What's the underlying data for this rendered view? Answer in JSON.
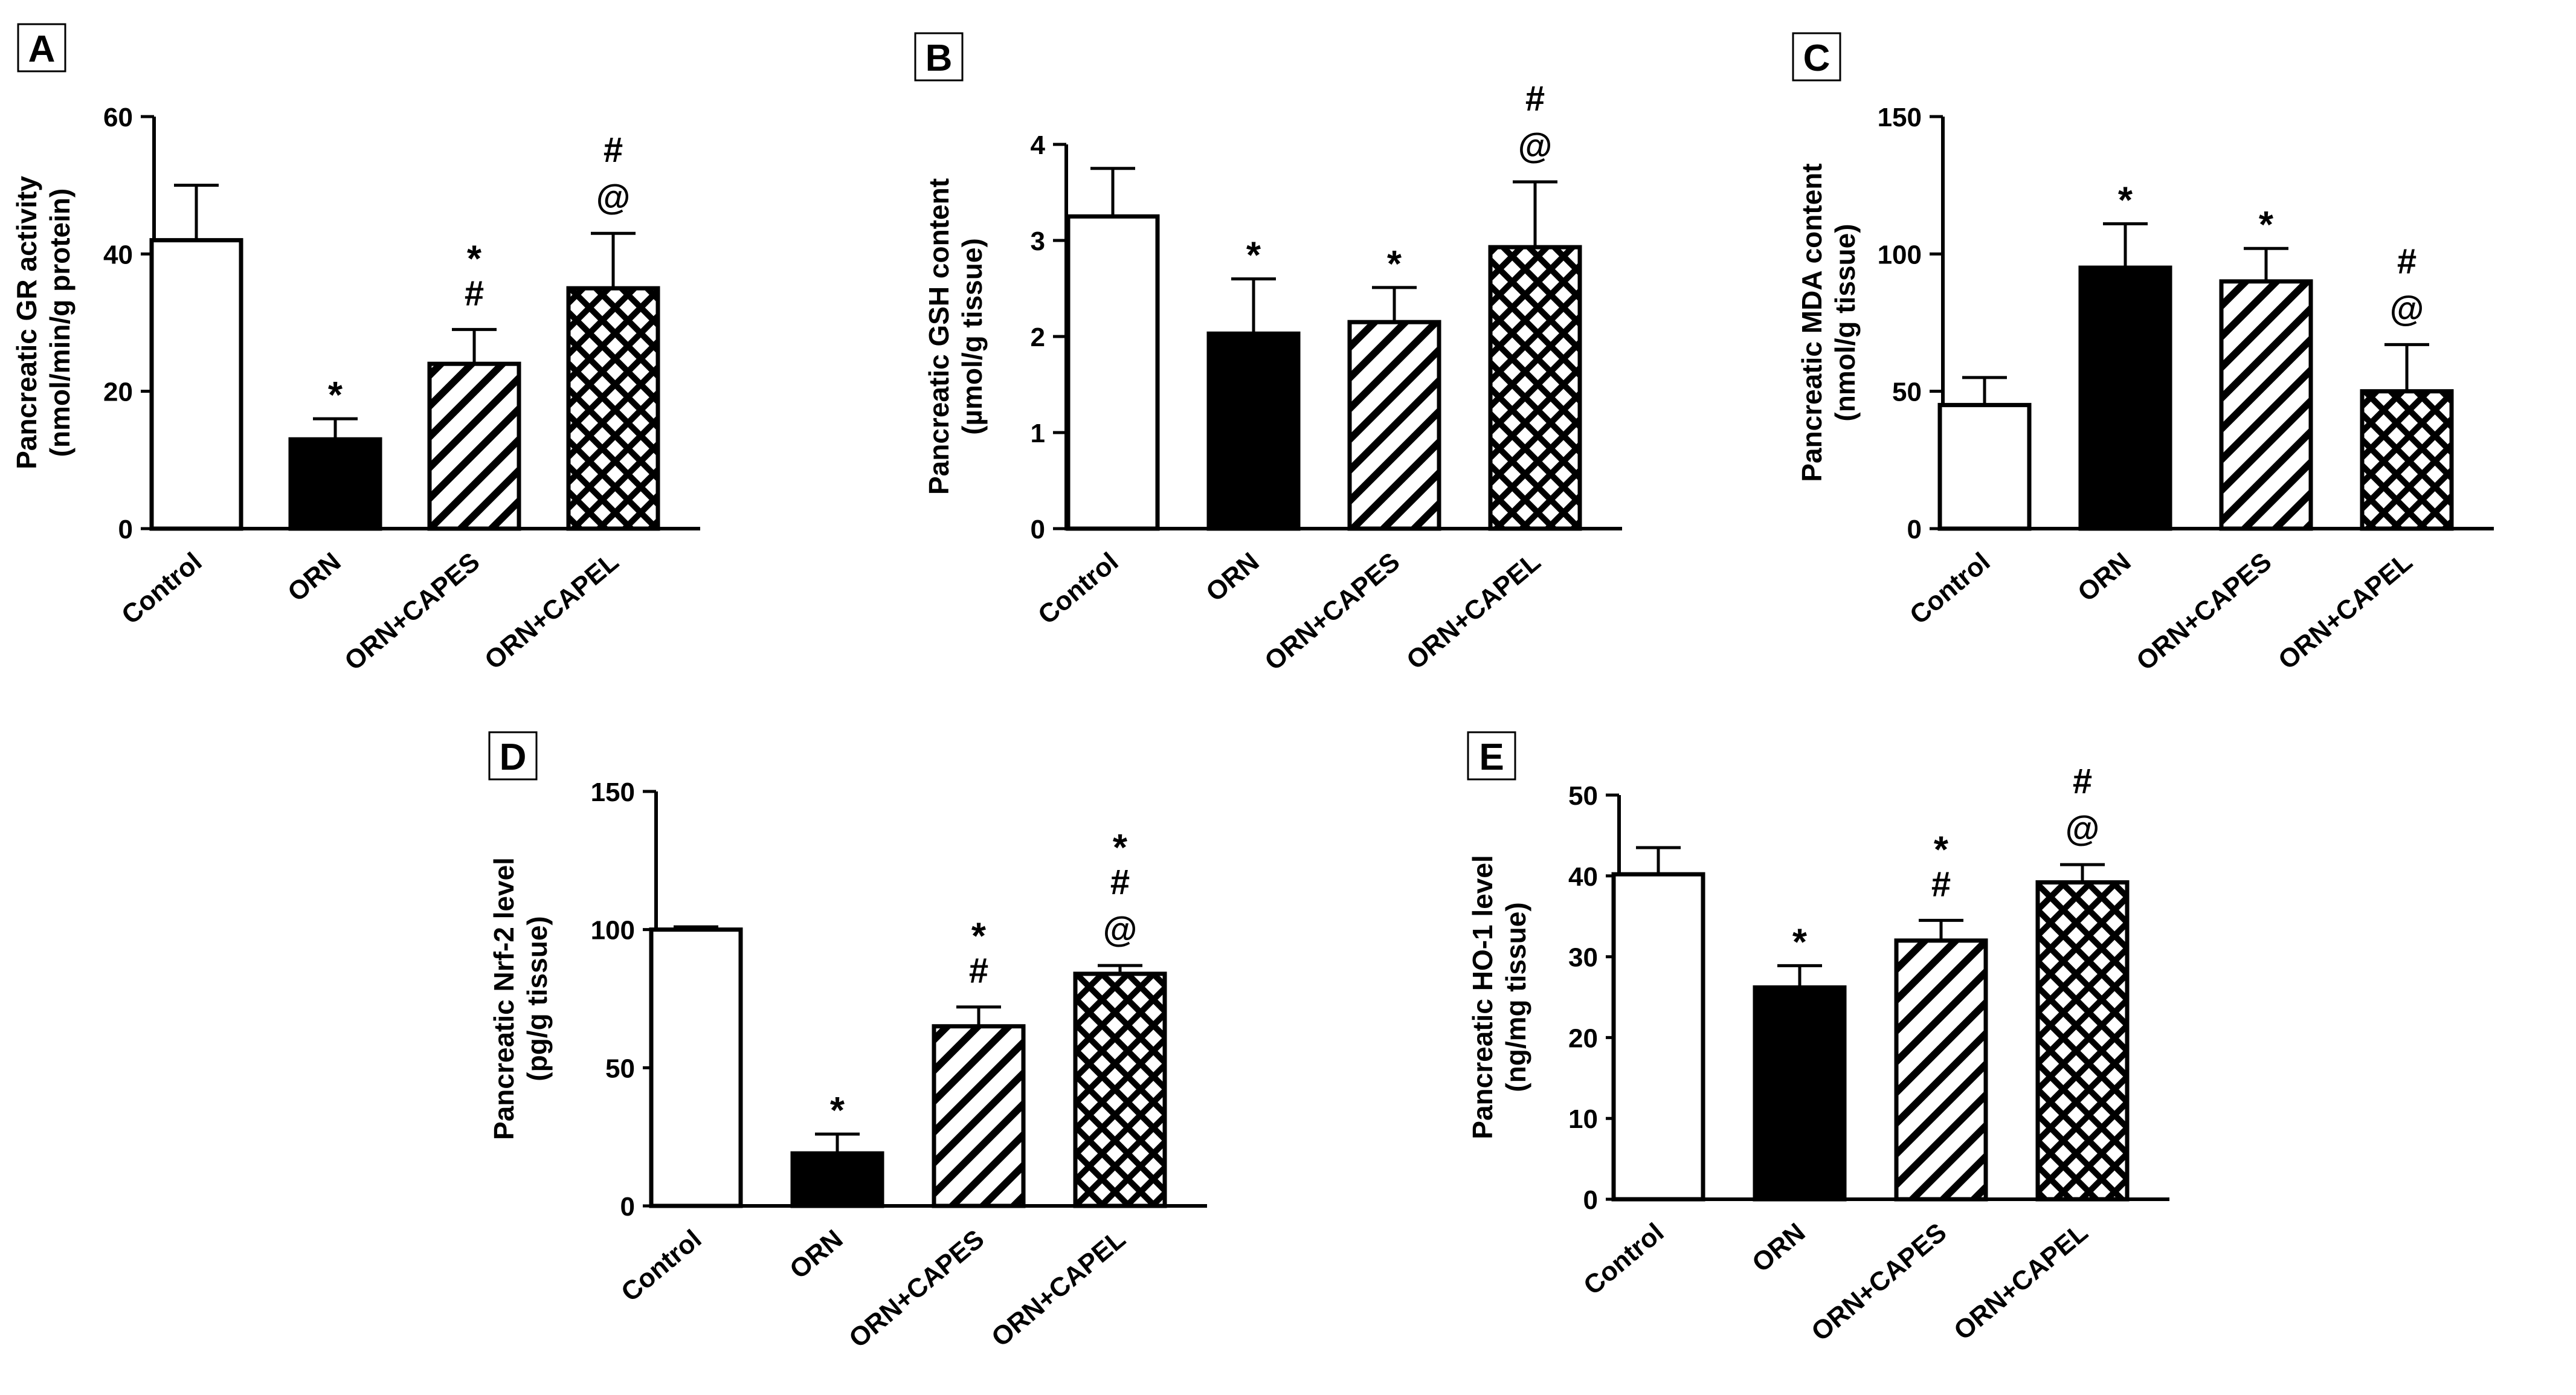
{
  "chart_data": [
    {
      "panel": "A",
      "type": "bar",
      "categories": [
        "Control",
        "ORN",
        "ORN+CAPES",
        "ORN+CAPEL"
      ],
      "values": [
        42,
        13,
        24,
        35
      ],
      "errors": [
        8,
        3,
        5,
        8
      ],
      "ylabel_line1": "Pancreatic GR activity",
      "ylabel_line2": "(nmol/min/g protein)",
      "ylim": [
        0,
        60
      ],
      "ticks": [
        "0",
        "20",
        "40",
        "60"
      ],
      "annotations": [
        [],
        [
          "*"
        ],
        [
          "*",
          "#"
        ],
        [
          "#",
          "@"
        ]
      ]
    },
    {
      "panel": "B",
      "type": "bar",
      "categories": [
        "Control",
        "ORN",
        "ORN+CAPES",
        "ORN+CAPEL"
      ],
      "values": [
        3.25,
        2.03,
        2.15,
        2.93
      ],
      "errors": [
        0.5,
        0.57,
        0.36,
        0.68
      ],
      "ylabel_line1": "Pancreatic GSH content",
      "ylabel_line2": "(µmol/g tissue)",
      "ylim": [
        0,
        4
      ],
      "ticks": [
        "0",
        "1",
        "2",
        "3",
        "4"
      ],
      "annotations": [
        [],
        [
          "*"
        ],
        [
          "*"
        ],
        [
          "#",
          "@"
        ]
      ]
    },
    {
      "panel": "C",
      "type": "bar",
      "categories": [
        "Control",
        "ORN",
        "ORN+CAPES",
        "ORN+CAPEL"
      ],
      "values": [
        45,
        95,
        90,
        50
      ],
      "errors": [
        10,
        16,
        12,
        17
      ],
      "ylabel_line1": "Pancreatic MDA content",
      "ylabel_line2": "(nmol/g tissue)",
      "ylim": [
        0,
        150
      ],
      "ticks": [
        "0",
        "50",
        "100",
        "150"
      ],
      "annotations": [
        [],
        [
          "*"
        ],
        [
          "*"
        ],
        [
          "#",
          "@"
        ]
      ]
    },
    {
      "panel": "D",
      "type": "bar",
      "categories": [
        "Control",
        "ORN",
        "ORN+CAPES",
        "ORN+CAPEL"
      ],
      "values": [
        100,
        19,
        65,
        84
      ],
      "errors": [
        1,
        7,
        7,
        3
      ],
      "ylabel_line1": "Pancreatic Nrf-2 level",
      "ylabel_line2": "(pg/g tissue)",
      "ylim": [
        0,
        150
      ],
      "ticks": [
        "0",
        "50",
        "100",
        "150"
      ],
      "annotations": [
        [],
        [
          "*"
        ],
        [
          "*",
          "#"
        ],
        [
          "*",
          "#",
          "@"
        ]
      ]
    },
    {
      "panel": "E",
      "type": "bar",
      "categories": [
        "Control",
        "ORN",
        "ORN+CAPES",
        "ORN+CAPEL"
      ],
      "values": [
        40.2,
        26.2,
        32,
        39.2
      ],
      "errors": [
        3.3,
        2.7,
        2.5,
        2.2
      ],
      "ylabel_line1": "Pancreatic HO-1 level",
      "ylabel_line2": "(ng/mg tissue)",
      "ylim": [
        0,
        50
      ],
      "ticks": [
        "0",
        "10",
        "20",
        "30",
        "40",
        "50"
      ],
      "annotations": [
        [],
        [
          "*"
        ],
        [
          "*",
          "#"
        ],
        [
          "#",
          "@"
        ]
      ]
    }
  ],
  "fills": [
    "#ffffff",
    "#000000",
    "#ffffff",
    "#ffffff"
  ],
  "patterns": [
    "none",
    "solid",
    "diagonal-stripes",
    "crosshatch"
  ],
  "colors": {
    "ink": "#000000",
    "background": "#ffffff"
  }
}
